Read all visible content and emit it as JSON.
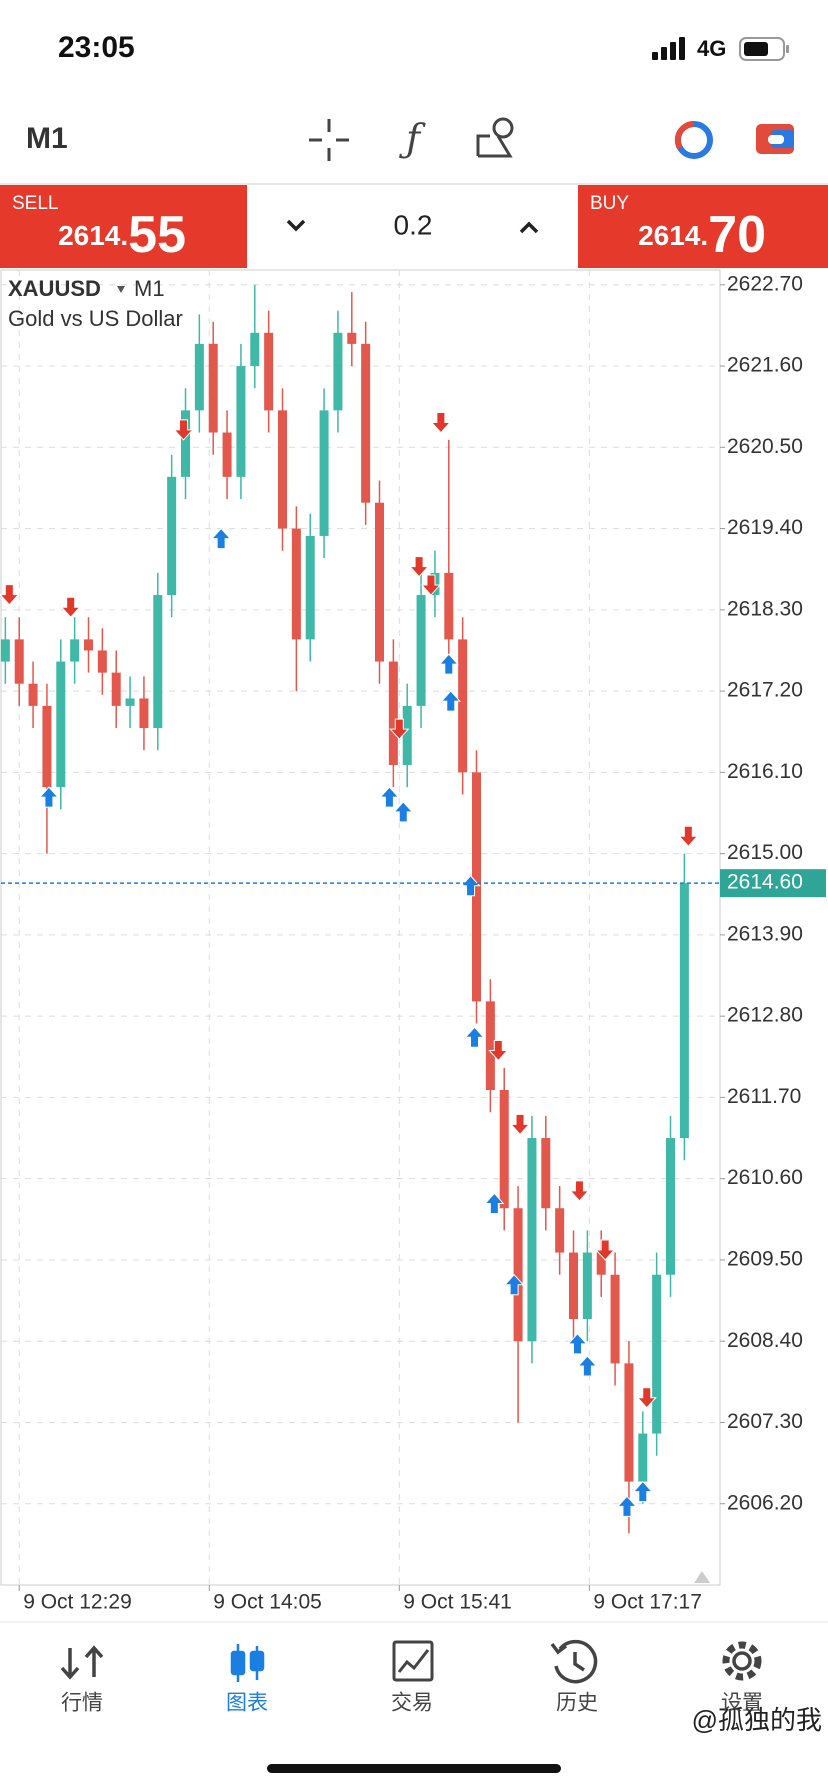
{
  "status_bar": {
    "time": "23:05",
    "network": "4G"
  },
  "toolbar": {
    "period": "M1"
  },
  "trade_panel": {
    "sell": {
      "label": "SELL",
      "price_head": "2614.",
      "price_tail": "55"
    },
    "volume": "0.2",
    "buy": {
      "label": "BUY",
      "price_head": "2614.",
      "price_tail": "70"
    }
  },
  "chart_data": {
    "type": "candlestick",
    "title": "XAUUSD",
    "period": "M1",
    "subtitle": "Gold vs US Dollar",
    "x": [
      -7,
      0,
      7,
      14,
      21,
      28,
      35,
      42,
      49,
      56,
      63,
      70,
      77,
      84,
      91,
      98,
      105,
      112,
      119,
      126,
      133,
      140,
      147,
      154,
      161,
      168,
      175,
      182,
      189,
      196,
      203,
      210,
      217,
      224,
      231,
      238,
      245,
      252,
      259,
      266,
      273,
      280,
      287,
      294,
      301,
      308,
      315,
      322,
      329,
      336
    ],
    "open": [
      2617.6,
      2617.9,
      2617.3,
      2617.0,
      2615.9,
      2617.6,
      2617.9,
      2617.75,
      2617.45,
      2617.0,
      2617.1,
      2616.7,
      2618.5,
      2620.1,
      2621.0,
      2621.9,
      2620.7,
      2620.1,
      2621.6,
      2622.05,
      2621.0,
      2619.4,
      2617.9,
      2619.3,
      2621.0,
      2622.05,
      2621.9,
      2619.75,
      2617.6,
      2616.2,
      2617.0,
      2618.5,
      2618.8,
      2617.9,
      2616.1,
      2613.0,
      2611.8,
      2610.2,
      2608.4,
      2611.15,
      2610.2,
      2609.6,
      2608.7,
      2609.6,
      2609.3,
      2608.1,
      2606.5,
      2607.15,
      2609.3,
      2611.15
    ],
    "high": [
      2618.2,
      2618.2,
      2617.6,
      2617.3,
      2617.9,
      2618.2,
      2618.2,
      2618.05,
      2617.75,
      2617.4,
      2617.4,
      2618.8,
      2620.4,
      2621.3,
      2622.3,
      2622.2,
      2621.0,
      2621.9,
      2622.7,
      2622.35,
      2621.3,
      2619.7,
      2619.6,
      2621.3,
      2622.35,
      2622.6,
      2622.2,
      2620.05,
      2617.9,
      2617.3,
      2618.8,
      2619.1,
      2620.6,
      2618.2,
      2616.4,
      2613.3,
      2612.1,
      2610.5,
      2611.45,
      2611.45,
      2610.5,
      2609.9,
      2609.9,
      2609.9,
      2609.6,
      2608.4,
      2607.45,
      2609.6,
      2611.45,
      2615.0
    ],
    "low": [
      2617.3,
      2617.0,
      2616.7,
      2615.0,
      2615.6,
      2617.3,
      2617.45,
      2617.15,
      2616.7,
      2616.7,
      2616.4,
      2616.4,
      2618.2,
      2619.8,
      2620.7,
      2620.4,
      2619.8,
      2619.8,
      2621.3,
      2620.7,
      2619.1,
      2617.2,
      2617.6,
      2619.0,
      2620.7,
      2621.6,
      2619.45,
      2617.3,
      2615.9,
      2615.9,
      2616.7,
      2618.2,
      2617.6,
      2615.8,
      2612.7,
      2611.5,
      2609.9,
      2607.3,
      2608.1,
      2609.9,
      2609.3,
      2608.4,
      2608.4,
      2609.0,
      2607.8,
      2605.8,
      2606.2,
      2606.85,
      2609.0,
      2610.85
    ],
    "close": [
      2617.9,
      2617.3,
      2617.0,
      2615.9,
      2617.6,
      2617.9,
      2617.75,
      2617.45,
      2617.0,
      2617.1,
      2616.7,
      2618.5,
      2620.1,
      2621.0,
      2621.9,
      2620.7,
      2620.1,
      2621.6,
      2622.05,
      2621.0,
      2619.4,
      2617.9,
      2619.3,
      2621.0,
      2622.05,
      2621.9,
      2619.75,
      2617.6,
      2616.2,
      2617.0,
      2618.5,
      2618.8,
      2617.9,
      2616.1,
      2613.0,
      2611.8,
      2610.2,
      2608.4,
      2611.15,
      2610.2,
      2609.6,
      2608.7,
      2609.6,
      2609.3,
      2608.1,
      2606.5,
      2607.15,
      2609.3,
      2611.15,
      2614.6
    ],
    "up_color": "#3fb8a8",
    "down_color": "#e2584d",
    "markers": [
      {
        "direction": "down",
        "color": "#e0392b",
        "x": [
          -5,
          26,
          83,
          192,
          202,
          208,
          213,
          242,
          253,
          283,
          296,
          317,
          338
        ],
        "values": [
          2618.37,
          2618.2,
          2620.6,
          2616.55,
          2618.75,
          2618.5,
          2620.7,
          2612.2,
          2611.2,
          2610.3,
          2609.5,
          2607.5,
          2615.1
        ]
      },
      {
        "direction": "up",
        "color": "#1a7fe0",
        "x": [
          15,
          102,
          187,
          194,
          217,
          218,
          228,
          230,
          240,
          250,
          282,
          287,
          307,
          315
        ],
        "values": [
          2615.9,
          2619.4,
          2615.9,
          2615.7,
          2617.7,
          2617.2,
          2614.7,
          2612.65,
          2610.4,
          2609.3,
          2608.5,
          2608.2,
          2606.3,
          2606.5
        ]
      }
    ],
    "current_price": {
      "value": 2614.6,
      "label": "2614.60"
    },
    "current_price_color": "#2ea597",
    "current_line_color": "#1a7fe0",
    "xlim": [
      -9.2,
      354
    ],
    "xticks": [
      {
        "value": 0,
        "label": "9 Oct 12:29"
      },
      {
        "value": 96,
        "label": "9 Oct 14:05"
      },
      {
        "value": 192,
        "label": "9 Oct 15:41"
      },
      {
        "value": 288,
        "label": "9 Oct 17:17"
      }
    ],
    "ylim": [
      2605.1,
      2622.9
    ],
    "yticks": [
      {
        "value": 2622.7,
        "label": "2622.70"
      },
      {
        "value": 2621.6,
        "label": "2621.60"
      },
      {
        "value": 2620.5,
        "label": "2620.50"
      },
      {
        "value": 2619.4,
        "label": "2619.40"
      },
      {
        "value": 2618.3,
        "label": "2618.30"
      },
      {
        "value": 2617.2,
        "label": "2617.20"
      },
      {
        "value": 2616.1,
        "label": "2616.10"
      },
      {
        "value": 2615.0,
        "label": "2615.00"
      },
      {
        "value": 2613.9,
        "label": "2613.90"
      },
      {
        "value": 2612.8,
        "label": "2612.80"
      },
      {
        "value": 2611.7,
        "label": "2611.70"
      },
      {
        "value": 2610.6,
        "label": "2610.60"
      },
      {
        "value": 2609.5,
        "label": "2609.50"
      },
      {
        "value": 2608.4,
        "label": "2608.40"
      },
      {
        "value": 2607.3,
        "label": "2607.30"
      },
      {
        "value": 2606.2,
        "label": "2606.20"
      }
    ],
    "grid": true
  },
  "nav": {
    "items": [
      "行情",
      "图表",
      "交易",
      "历史",
      "设置"
    ],
    "active": 1
  },
  "watermark": "@孤独的我"
}
